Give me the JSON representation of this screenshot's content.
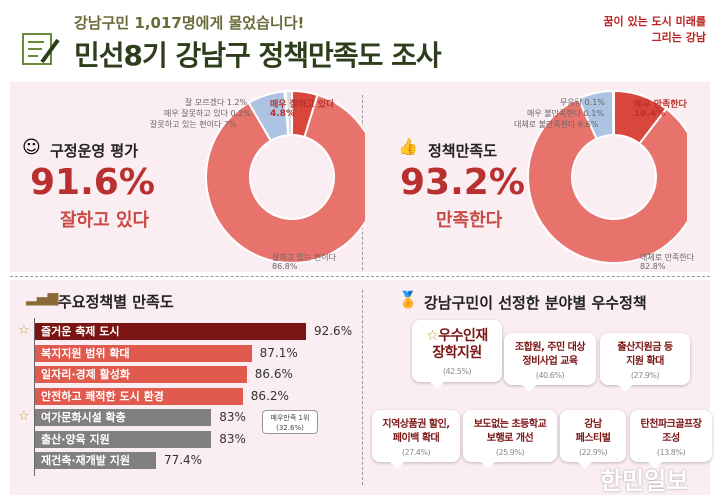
{
  "header": {
    "subtitle": "강남구민 1,017명에게 물었습니다!",
    "title": "민선8기 강남구 정책만족도 조사",
    "logo_text": "꿈이 있는 도시 미래를 그리는 강남"
  },
  "colors": {
    "accent": "#b8312f",
    "dark_red": "#7a1513",
    "bar_red": "#e05a4e",
    "bar_gray": "#808080",
    "panel": "#fbeef3"
  },
  "chart_data": [
    {
      "type": "pie",
      "variant": "donut",
      "title": "구정운영 평가",
      "headline": "91.6%",
      "headline_sub": "잘하고 있다",
      "slices": [
        {
          "label": "매우 잘하고 있다",
          "value": 4.8,
          "text": "4.8%",
          "color": "#d9463c"
        },
        {
          "label": "잘하고 있는 편이다",
          "value": 86.8,
          "text": "86.8%",
          "color": "#e8736c"
        },
        {
          "label": "잘못하고 있는 편이다",
          "value": 7,
          "text": "7%",
          "color": "#adc3e2"
        },
        {
          "label": "매우 잘못하고 있다",
          "value": 0.2,
          "text": "0.2%",
          "color": "#8aa0c8"
        },
        {
          "label": "잘 모르겠다",
          "value": 1.2,
          "text": "1.2%",
          "color": "#d8d8d8"
        }
      ]
    },
    {
      "type": "pie",
      "variant": "donut",
      "title": "정책만족도",
      "headline": "93.2%",
      "headline_sub": "만족한다",
      "slices": [
        {
          "label": "매우 만족한다",
          "value": 10.4,
          "text": "10.4%",
          "color": "#d9463c"
        },
        {
          "label": "대체로 만족한다",
          "value": 82.8,
          "text": "82.8%",
          "color": "#e8736c"
        },
        {
          "label": "대체로 불만족한다",
          "value": 6.6,
          "text": "6.6%",
          "color": "#adc3e2"
        },
        {
          "label": "매우 불만족한다",
          "value": 0.1,
          "text": "0.1%",
          "color": "#8aa0c8"
        },
        {
          "label": "무응답",
          "value": 0.1,
          "text": "0.1%",
          "color": "#d8d8d8"
        }
      ]
    },
    {
      "type": "bar",
      "orientation": "horizontal",
      "title": "주요정책별 만족도",
      "categories": [
        "즐거운 축제 도시",
        "복지지원 범위 확대",
        "일자리·경제 활성화",
        "안전하고 쾌적한 도시 환경",
        "여가문화시설 확충",
        "출산·양육 지원",
        "재건축·재개발 지원"
      ],
      "values": [
        92.6,
        87.1,
        86.6,
        86.2,
        83,
        83,
        77.4
      ],
      "value_labels": [
        "92.6%",
        "87.1%",
        "86.6%",
        "86.2%",
        "83%",
        "83%",
        "77.4%"
      ],
      "bar_colors": [
        "#7a1513",
        "#e05a4e",
        "#e05a4e",
        "#e05a4e",
        "#808080",
        "#808080",
        "#808080"
      ],
      "starred": [
        0,
        4
      ],
      "annotation": {
        "line1": "매우만족 1위",
        "line2": "(32.6%)"
      }
    }
  ],
  "best_policies": {
    "title": "강남구민이 선정한 분야별 우수정책",
    "items": [
      {
        "line1": "우수인재",
        "line2": "장학지원",
        "pct": "(42.5%)"
      },
      {
        "line1": "조합원, 주민 대상",
        "line2": "정비사업 교육",
        "pct": "(40.6%)"
      },
      {
        "line1": "출산지원금 등",
        "line2": "지원 확대",
        "pct": "(27.9%)"
      },
      {
        "line1": "지역상품권 할인,",
        "line2": "페이백 확대",
        "pct": "(27.4%)"
      },
      {
        "line1": "보도없는 초등학교",
        "line2": "보행로 개선",
        "pct": "(25.9%)"
      },
      {
        "line1": "강남",
        "line2": "페스티벌",
        "pct": "(22.9%)"
      },
      {
        "line1": "탄천파크골프장",
        "line2": "조성",
        "pct": "(13.8%)"
      }
    ]
  },
  "watermark": "한민일보"
}
